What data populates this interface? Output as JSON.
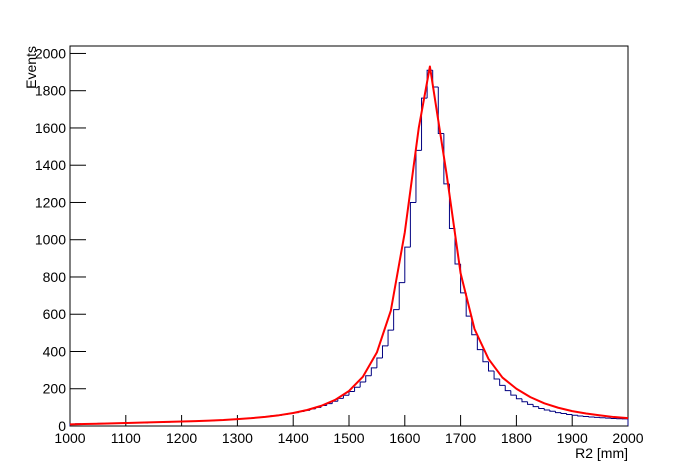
{
  "chart_data": {
    "type": "histogram",
    "x_label": "R2 [mm]",
    "y_label": "Events",
    "color": "#000080",
    "bins": [
      1000,
      1010,
      1020,
      1030,
      1040,
      1050,
      1060,
      1070,
      1080,
      1090,
      1100,
      1110,
      1120,
      1130,
      1140,
      1150,
      1160,
      1170,
      1180,
      1190,
      1200,
      1210,
      1220,
      1230,
      1240,
      1250,
      1260,
      1270,
      1280,
      1290,
      1300,
      1310,
      1320,
      1330,
      1340,
      1350,
      1360,
      1370,
      1380,
      1390,
      1400,
      1410,
      1420,
      1430,
      1440,
      1450,
      1460,
      1470,
      1480,
      1490,
      1500,
      1510,
      1520,
      1530,
      1540,
      1550,
      1560,
      1570,
      1580,
      1590,
      1600,
      1610,
      1620,
      1630,
      1640,
      1650,
      1660,
      1670,
      1680,
      1690,
      1700,
      1710,
      1720,
      1730,
      1740,
      1750,
      1760,
      1770,
      1780,
      1790,
      1800,
      1810,
      1820,
      1830,
      1840,
      1850,
      1860,
      1870,
      1880,
      1890,
      1900,
      1910,
      1920,
      1930,
      1940,
      1950,
      1960,
      1970,
      1980,
      1990,
      2000
    ],
    "values": [
      10,
      12,
      11,
      13,
      12,
      14,
      13,
      15,
      14,
      16,
      16,
      17,
      18,
      17,
      19,
      20,
      19,
      21,
      22,
      23,
      24,
      24,
      26,
      27,
      28,
      29,
      31,
      32,
      34,
      36,
      38,
      40,
      42,
      45,
      48,
      51,
      55,
      58,
      62,
      67,
      72,
      78,
      84,
      92,
      100,
      110,
      120,
      133,
      148,
      165,
      185,
      208,
      236,
      270,
      312,
      365,
      430,
      515,
      625,
      770,
      960,
      1200,
      1480,
      1760,
      1910,
      1820,
      1570,
      1300,
      1060,
      870,
      715,
      590,
      490,
      410,
      345,
      295,
      252,
      218,
      190,
      166,
      146,
      130,
      116,
      104,
      94,
      86,
      79,
      72,
      67,
      62,
      58,
      54,
      51,
      48,
      46,
      44,
      42,
      40,
      39,
      38
    ],
    "fit": {
      "color": "#ff0000",
      "x": [
        1000,
        1025,
        1050,
        1075,
        1100,
        1125,
        1150,
        1175,
        1200,
        1225,
        1250,
        1275,
        1300,
        1325,
        1350,
        1375,
        1400,
        1425,
        1450,
        1475,
        1500,
        1525,
        1550,
        1575,
        1600,
        1625,
        1645,
        1675,
        1700,
        1725,
        1750,
        1775,
        1800,
        1825,
        1850,
        1875,
        1900,
        1925,
        1950,
        1975,
        2000
      ],
      "values": [
        9,
        11,
        12,
        14,
        16,
        18,
        20,
        22,
        24,
        26,
        29,
        32,
        37,
        42,
        49,
        58,
        70,
        86,
        108,
        140,
        188,
        265,
        395,
        620,
        1040,
        1600,
        1930,
        1350,
        820,
        520,
        360,
        260,
        200,
        155,
        122,
        98,
        80,
        67,
        57,
        48,
        42
      ]
    },
    "xlim": [
      1000,
      2000
    ],
    "ylim": [
      0,
      2040
    ],
    "xticks": [
      1000,
      1100,
      1200,
      1300,
      1400,
      1500,
      1600,
      1700,
      1800,
      1900,
      2000
    ],
    "yticks": [
      0,
      200,
      400,
      600,
      800,
      1000,
      1200,
      1400,
      1600,
      1800,
      2000
    ]
  }
}
